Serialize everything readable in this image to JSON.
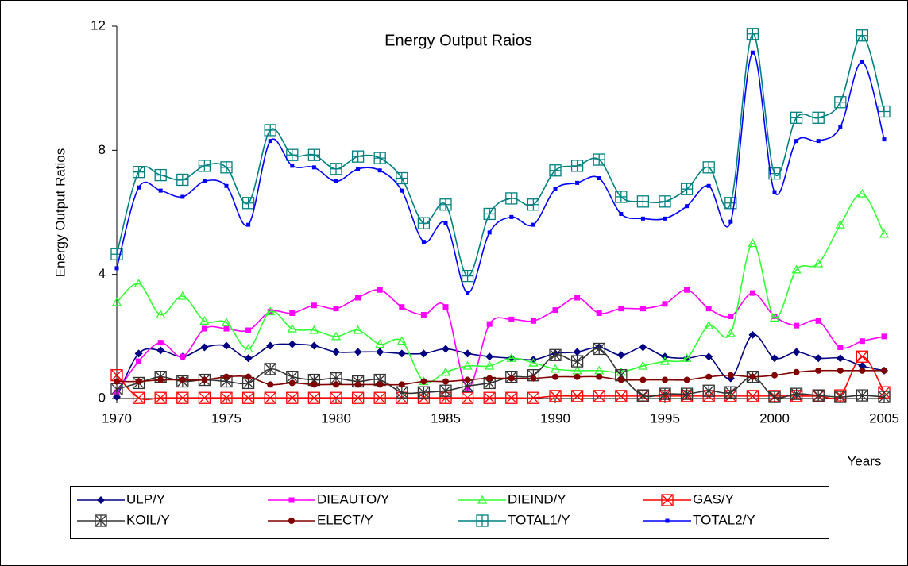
{
  "chart_data": {
    "type": "line",
    "title": "Energy Output Raios",
    "x_label": "Years",
    "y_label": "Energy Output Ratios",
    "x": [
      1970,
      1971,
      1972,
      1973,
      1974,
      1975,
      1976,
      1977,
      1978,
      1979,
      1980,
      1981,
      1982,
      1983,
      1984,
      1985,
      1986,
      1987,
      1988,
      1989,
      1990,
      1991,
      1992,
      1993,
      1994,
      1995,
      1996,
      1997,
      1998,
      1999,
      2000,
      2001,
      2002,
      2003,
      2004,
      2005
    ],
    "xlim": [
      1970,
      2005
    ],
    "xticks": [
      1970,
      1975,
      1980,
      1985,
      1990,
      1995,
      2000,
      2005
    ],
    "ylim": [
      0,
      12
    ],
    "yticks": [
      0,
      4,
      8,
      12
    ],
    "grid": false,
    "legend": "bottom",
    "smooth": true,
    "series": [
      {
        "name": "ULP/Y",
        "color": "#000080",
        "marker": "diamond",
        "values": [
          0.05,
          1.45,
          1.55,
          1.35,
          1.65,
          1.7,
          1.3,
          1.7,
          1.75,
          1.7,
          1.5,
          1.5,
          1.5,
          1.45,
          1.45,
          1.6,
          1.45,
          1.35,
          1.3,
          1.25,
          1.45,
          1.5,
          1.65,
          1.4,
          1.65,
          1.35,
          1.3,
          1.35,
          0.65,
          2.05,
          1.3,
          1.5,
          1.3,
          1.3,
          1.05,
          0.9
        ]
      },
      {
        "name": "DIEAUTO/Y",
        "color": "#ff00ff",
        "marker": "square",
        "values": [
          0.2,
          1.2,
          1.8,
          1.35,
          2.25,
          2.25,
          2.2,
          2.8,
          2.75,
          3.0,
          2.9,
          3.25,
          3.5,
          2.95,
          2.7,
          2.95,
          0.35,
          2.4,
          2.55,
          2.5,
          2.85,
          3.25,
          2.75,
          2.9,
          2.9,
          3.05,
          3.5,
          2.9,
          2.65,
          3.4,
          2.65,
          2.35,
          2.5,
          1.65,
          1.85,
          2.0
        ]
      },
      {
        "name": "DIEIND/Y",
        "color": "#33ff33",
        "marker": "triangle",
        "values": [
          3.1,
          3.7,
          2.7,
          3.3,
          2.5,
          2.45,
          1.6,
          2.8,
          2.25,
          2.2,
          2.0,
          2.2,
          1.75,
          1.85,
          0.55,
          0.85,
          1.05,
          1.05,
          1.3,
          1.15,
          0.95,
          0.9,
          0.9,
          0.85,
          1.05,
          1.2,
          1.3,
          2.35,
          2.1,
          5.0,
          2.6,
          4.15,
          4.35,
          5.6,
          6.6,
          5.3
        ]
      },
      {
        "name": "GAS/Y",
        "color": "#ff0000",
        "marker": "box-x",
        "values": [
          0.75,
          0.02,
          0.02,
          0.02,
          0.02,
          0.02,
          0.02,
          0.02,
          0.02,
          0.02,
          0.02,
          0.02,
          0.02,
          0.02,
          0.02,
          0.02,
          0.02,
          0.02,
          0.02,
          0.02,
          0.08,
          0.08,
          0.08,
          0.08,
          0.08,
          0.08,
          0.08,
          0.08,
          0.08,
          0.08,
          0.08,
          0.08,
          0.08,
          0.1,
          1.35,
          0.2
        ]
      },
      {
        "name": "KOIL/Y",
        "color": "#333333",
        "marker": "box-star",
        "values": [
          0.3,
          0.5,
          0.7,
          0.55,
          0.6,
          0.55,
          0.5,
          0.95,
          0.7,
          0.6,
          0.65,
          0.55,
          0.6,
          0.2,
          0.2,
          0.25,
          0.4,
          0.5,
          0.7,
          0.75,
          1.4,
          1.2,
          1.6,
          0.75,
          0.1,
          0.15,
          0.15,
          0.25,
          0.2,
          0.7,
          0.05,
          0.15,
          0.1,
          0.05,
          0.1,
          0.05
        ]
      },
      {
        "name": "ELECT/Y",
        "color": "#800000",
        "marker": "circle",
        "values": [
          0.55,
          0.55,
          0.6,
          0.6,
          0.6,
          0.7,
          0.7,
          0.45,
          0.5,
          0.45,
          0.45,
          0.45,
          0.45,
          0.45,
          0.55,
          0.55,
          0.6,
          0.65,
          0.65,
          0.65,
          0.7,
          0.7,
          0.7,
          0.6,
          0.6,
          0.6,
          0.6,
          0.7,
          0.75,
          0.7,
          0.75,
          0.85,
          0.9,
          0.9,
          0.9,
          0.9
        ]
      },
      {
        "name": "TOTAL1/Y",
        "color": "#008080",
        "marker": "box-plus",
        "values": [
          4.65,
          7.3,
          7.2,
          7.05,
          7.5,
          7.45,
          6.3,
          8.65,
          7.85,
          7.85,
          7.4,
          7.8,
          7.75,
          7.1,
          5.65,
          6.25,
          3.95,
          5.95,
          6.45,
          6.25,
          7.35,
          7.5,
          7.7,
          6.5,
          6.35,
          6.35,
          6.75,
          7.45,
          6.3,
          11.75,
          7.25,
          9.05,
          9.05,
          9.55,
          11.7,
          9.25
        ]
      },
      {
        "name": "TOTAL2/Y",
        "color": "#0000ff",
        "marker": "small-square",
        "values": [
          4.2,
          6.8,
          6.7,
          6.5,
          7.0,
          6.85,
          5.6,
          8.3,
          7.5,
          7.45,
          7.0,
          7.4,
          7.35,
          6.7,
          5.05,
          5.65,
          3.4,
          5.35,
          5.85,
          5.6,
          6.75,
          6.95,
          7.1,
          5.95,
          5.8,
          5.8,
          6.2,
          6.85,
          5.7,
          11.15,
          6.65,
          8.3,
          8.3,
          8.75,
          10.85,
          8.35
        ]
      }
    ]
  }
}
